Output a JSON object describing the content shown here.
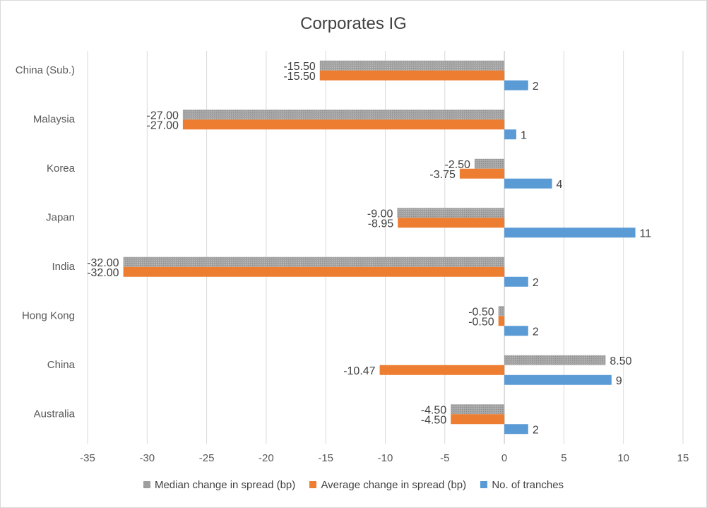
{
  "chart_data": {
    "type": "bar",
    "orientation": "horizontal",
    "title": "Corporates IG",
    "categories": [
      "China (Sub.)",
      "Malaysia",
      "Korea",
      "Japan",
      "India",
      "Hong Kong",
      "China",
      "Australia"
    ],
    "series": [
      {
        "name": "Median change in spread (bp)",
        "color": "#a5a5a5",
        "pattern": "dotted",
        "values": [
          -15.5,
          -27.0,
          -2.5,
          -9.0,
          -32.0,
          -0.5,
          8.5,
          -4.5
        ],
        "labels": [
          "-15.50",
          "-27.00",
          "-2.50",
          "-9.00",
          "-32.00",
          "-0.50",
          "8.50",
          "-4.50"
        ]
      },
      {
        "name": "Average change in spread (bp)",
        "color": "#ed7d31",
        "values": [
          -15.5,
          -27.0,
          -3.75,
          -8.95,
          -32.0,
          -0.5,
          -10.47,
          -4.5
        ],
        "labels": [
          "-15.50",
          "-27.00",
          "-3.75",
          "-8.95",
          "-32.00",
          "-0.50",
          "-10.47",
          "-4.50"
        ]
      },
      {
        "name": "No. of tranches",
        "color": "#5b9bd5",
        "values": [
          2,
          1,
          4,
          11,
          2,
          2,
          9,
          2
        ],
        "labels": [
          "2",
          "1",
          "4",
          "11",
          "2",
          "2",
          "9",
          "2"
        ]
      }
    ],
    "xlim": [
      -35,
      15
    ],
    "xticks": [
      -35,
      -30,
      -25,
      -20,
      -15,
      -10,
      -5,
      0,
      5,
      10,
      15
    ],
    "xlabel": "",
    "ylabel": "",
    "grid": true,
    "legend_position": "bottom"
  }
}
